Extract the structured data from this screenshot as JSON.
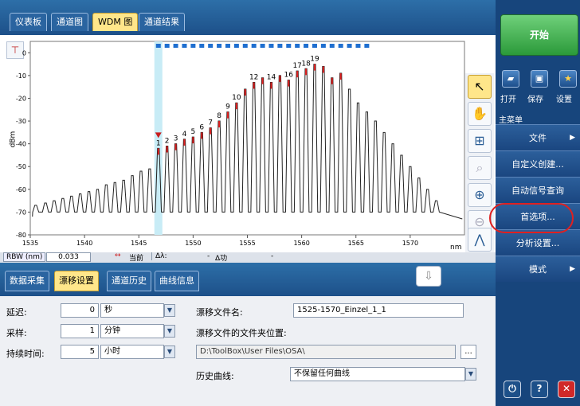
{
  "tabs_top": [
    "仪表板",
    "通道图",
    "WDM 图",
    "通道结果"
  ],
  "tabs_bottom": [
    "数据采集",
    "漂移设置",
    "通道历史",
    "曲线信息"
  ],
  "chart_data": {
    "type": "line",
    "xlabel": "nm",
    "ylabel": "dBm",
    "xlim": [
      1535,
      1575
    ],
    "ylim": [
      -80,
      5
    ],
    "x_ticks": [
      1535,
      1540,
      1545,
      1550,
      1555,
      1560,
      1565,
      1570
    ],
    "y_ticks": [
      0,
      -10,
      -20,
      -30,
      -40,
      -50,
      -60,
      -70,
      -80
    ],
    "series": [
      {
        "x": [
          1535.5,
          1536.4,
          1537.2,
          1538.0,
          1538.8,
          1539.6,
          1540.4,
          1541.2,
          1542.0,
          1542.8,
          1543.6,
          1544.4,
          1545.2,
          1546.0,
          1546.8,
          1547.6,
          1548.4,
          1549.2,
          1550.0,
          1550.8,
          1551.6,
          1552.4,
          1553.2,
          1554.0,
          1554.8,
          1555.6,
          1556.4,
          1557.2,
          1558.0,
          1558.8,
          1559.6,
          1560.4,
          1561.2,
          1562.0,
          1562.8,
          1563.6,
          1564.4,
          1565.2,
          1566.0,
          1566.8,
          1567.6,
          1568.4,
          1569.2,
          1570.0,
          1570.8,
          1571.6,
          1572.4
        ],
        "y": [
          -67,
          -66,
          -65,
          -64,
          -63,
          -62,
          -61,
          -60,
          -58,
          -57,
          -56,
          -54,
          -52,
          -51,
          -42,
          -41,
          -40,
          -38,
          -37,
          -35,
          -33,
          -30,
          -26,
          -22,
          -16,
          -13,
          -11,
          -13,
          -10,
          -12,
          -8,
          -7,
          -5,
          -6,
          -11,
          -9,
          -16,
          -22,
          -26,
          -30,
          -35,
          -40,
          -45,
          -50,
          -55,
          -60,
          -65
        ]
      }
    ],
    "channel_labels": [
      "1",
      "2",
      "3",
      "4",
      "5",
      "6",
      "7",
      "8",
      "9",
      "10",
      "12",
      "14",
      "16",
      "17",
      "18",
      "19"
    ]
  },
  "rbw": {
    "label": "RBW (nm)",
    "value": "0.033",
    "current_label": "当前",
    "delta_lambda": "Δλ:",
    "delta_lambda_val": "-",
    "delta_power": "Δ功",
    "delta_power_val": "-"
  },
  "form": {
    "delay_label": "延迟:",
    "delay_value": "0",
    "delay_unit": "秒",
    "sample_label": "采样:",
    "sample_value": "1",
    "sample_unit": "分钟",
    "duration_label": "持续时间:",
    "duration_value": "5",
    "duration_unit": "小时",
    "drift_file_label": "漂移文件名:",
    "drift_file_value": "1525-1570_Einzel_1_1",
    "folder_label": "漂移文件的文件夹位置:",
    "folder_value": "D:\\ToolBox\\User Files\\OSA\\",
    "browse_label": "...",
    "history_label": "历史曲线:",
    "history_value": "不保留任何曲线"
  },
  "right": {
    "start": "开始",
    "quick": [
      "打开",
      "保存",
      "设置"
    ],
    "menu_header": "主菜单",
    "menu": [
      "文件",
      "自定义创建...",
      "自动信号查询",
      "首选项...",
      "分析设置...",
      "模式"
    ]
  },
  "colors": {
    "accent": "#ffe68a",
    "panel": "#17457c",
    "start": "#2b9a3a",
    "highlight": "#e02020"
  }
}
